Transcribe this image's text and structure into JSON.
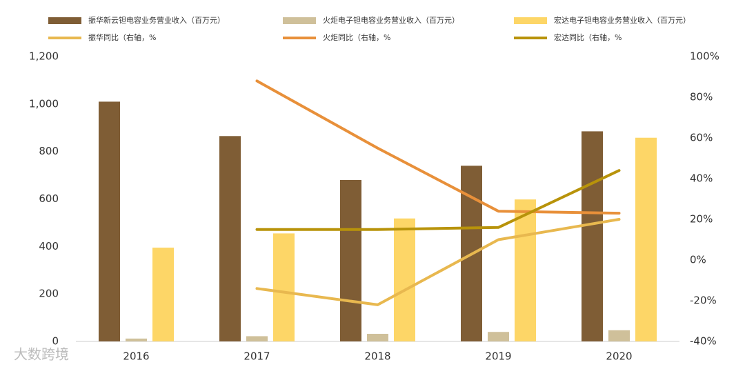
{
  "chart_data": {
    "type": "bar",
    "categories": [
      "2016",
      "2017",
      "2018",
      "2019",
      "2020"
    ],
    "series": [
      {
        "name": "振华新云钽电容业务营业收入（百万元）",
        "type": "bar",
        "color": "#7f5d35",
        "values": [
          1010,
          865,
          680,
          740,
          885
        ]
      },
      {
        "name": "火炬电子钽电容业务营业收入（百万元）",
        "type": "bar",
        "color": "#cfc09a",
        "values": [
          12,
          22,
          32,
          40,
          47
        ]
      },
      {
        "name": "宏达电子钽电容业务营业收入（百万元）",
        "type": "bar",
        "color": "#fdd667",
        "values": [
          395,
          455,
          518,
          598,
          858
        ]
      },
      {
        "name": "振华同比（右轴，%",
        "type": "line",
        "axis": "y2",
        "color": "#e8b84f",
        "values": [
          null,
          -14,
          -22,
          10,
          20
        ]
      },
      {
        "name": "火炬同比（右轴，%",
        "type": "line",
        "axis": "y2",
        "color": "#e8903a",
        "values": [
          null,
          88,
          55,
          24,
          23
        ]
      },
      {
        "name": "宏达同比（右轴，%",
        "type": "line",
        "axis": "y2",
        "color": "#b8930a",
        "values": [
          null,
          15,
          15,
          16,
          44
        ]
      }
    ],
    "ylim": [
      0,
      1200
    ],
    "yticks": [
      0,
      200,
      400,
      600,
      800,
      {
        "value": 1000,
        "label": "1,000"
      },
      {
        "value": 1200,
        "label": "1,200"
      }
    ],
    "y2lim": [
      -40,
      100
    ],
    "y2ticks": [
      {
        "value": -40,
        "label": "-40%"
      },
      {
        "value": -20,
        "label": "-20%"
      },
      {
        "value": 0,
        "label": "0%"
      },
      {
        "value": 20,
        "label": "20%"
      },
      {
        "value": 40,
        "label": "40%"
      },
      {
        "value": 60,
        "label": "60%"
      },
      {
        "value": 80,
        "label": "80%"
      },
      {
        "value": 100,
        "label": "100%"
      }
    ],
    "watermark": "大数跨境"
  }
}
